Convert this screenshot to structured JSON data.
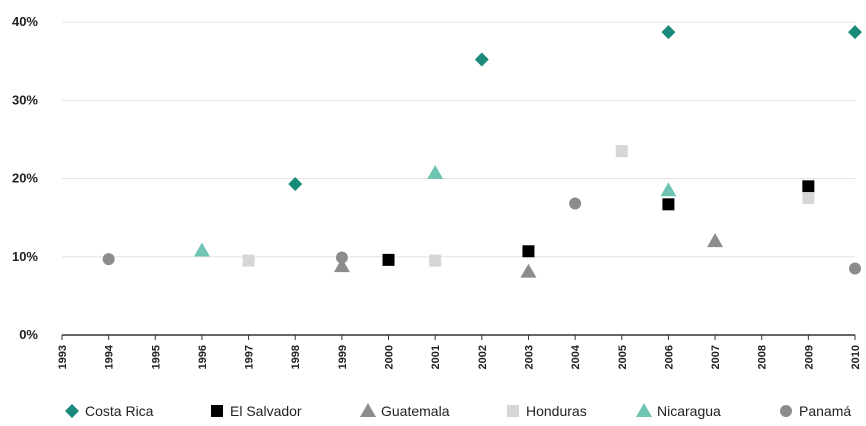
{
  "chart_data": {
    "type": "scatter",
    "title": "",
    "xlabel": "",
    "ylabel": "",
    "x_categories": [
      "1993",
      "1994",
      "1995",
      "1996",
      "1997",
      "1998",
      "1999",
      "2000",
      "2001",
      "2002",
      "2003",
      "2004",
      "2005",
      "2006",
      "2007",
      "2008",
      "2009",
      "2010"
    ],
    "y_ticks": [
      "0%",
      "10%",
      "20%",
      "30%",
      "40%"
    ],
    "ylim": [
      0,
      40
    ],
    "grid": true,
    "legend_position": "bottom",
    "series": [
      {
        "name": "Costa Rica",
        "marker": "diamond",
        "color": "#1a8a7a",
        "points": [
          {
            "x": "1998",
            "y": 19.3
          },
          {
            "x": "2002",
            "y": 35.2
          },
          {
            "x": "2006",
            "y": 38.7
          },
          {
            "x": "2010",
            "y": 38.7
          }
        ]
      },
      {
        "name": "El Salvador",
        "marker": "square",
        "color": "#000000",
        "points": [
          {
            "x": "2000",
            "y": 9.6
          },
          {
            "x": "2003",
            "y": 10.7
          },
          {
            "x": "2006",
            "y": 16.7
          },
          {
            "x": "2009",
            "y": 19.0
          }
        ]
      },
      {
        "name": "Guatemala",
        "marker": "triangle",
        "color": "#8c8c8c",
        "points": [
          {
            "x": "1999",
            "y": 8.8
          },
          {
            "x": "2003",
            "y": 8.1
          },
          {
            "x": "2007",
            "y": 12.0
          }
        ]
      },
      {
        "name": "Honduras",
        "marker": "square",
        "color": "#d6d6d6",
        "points": [
          {
            "x": "1997",
            "y": 9.5
          },
          {
            "x": "2001",
            "y": 9.5
          },
          {
            "x": "2005",
            "y": 23.5
          },
          {
            "x": "2009",
            "y": 17.5
          }
        ]
      },
      {
        "name": "Nicaragua",
        "marker": "triangle",
        "color": "#6fc4b4",
        "points": [
          {
            "x": "1996",
            "y": 10.8
          },
          {
            "x": "2001",
            "y": 20.7
          },
          {
            "x": "2006",
            "y": 18.5
          }
        ]
      },
      {
        "name": "Panamá",
        "marker": "circle",
        "color": "#8c8c8c",
        "points": [
          {
            "x": "1994",
            "y": 9.7
          },
          {
            "x": "1999",
            "y": 9.9
          },
          {
            "x": "2004",
            "y": 16.8
          },
          {
            "x": "2010",
            "y": 8.5
          }
        ]
      }
    ]
  }
}
